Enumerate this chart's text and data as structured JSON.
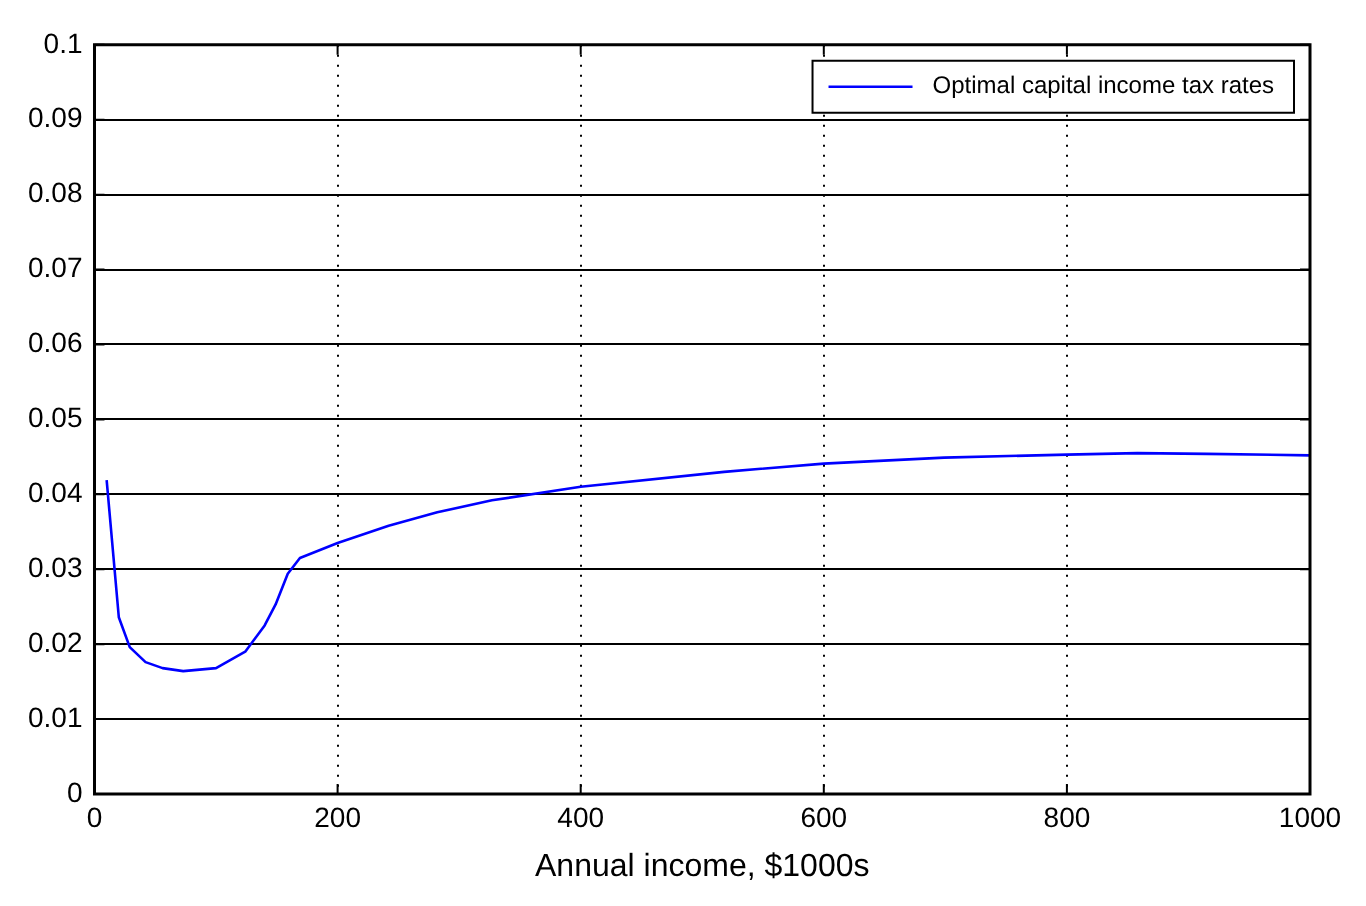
{
  "chart_data": {
    "type": "line",
    "xlabel": "Annual income, $1000s",
    "x": [
      10,
      20,
      29,
      42,
      56,
      73,
      100,
      124,
      140,
      149,
      159,
      169,
      200,
      242,
      282,
      327,
      400,
      518,
      600,
      699,
      800,
      858,
      915,
      1000
    ],
    "series": [
      {
        "name": "Optimal capital income tax rates",
        "color": "#0000ff",
        "values": [
          0.0419,
          0.0236,
          0.0196,
          0.0176,
          0.0168,
          0.0164,
          0.0168,
          0.019,
          0.0225,
          0.0253,
          0.0294,
          0.0315,
          0.0335,
          0.0358,
          0.0376,
          0.0392,
          0.041,
          0.043,
          0.0441,
          0.0449,
          0.0453,
          0.0455,
          0.0454,
          0.0452
        ]
      }
    ],
    "xlim": [
      0,
      1000
    ],
    "xticks": [
      0,
      200,
      400,
      600,
      800,
      1000
    ],
    "ylim": [
      0,
      0.1
    ],
    "yticks": [
      0,
      0.01,
      0.02,
      0.03,
      0.04,
      0.05,
      0.06,
      0.07,
      0.08,
      0.09,
      0.1
    ],
    "grid": true,
    "legend": "top right",
    "marker": "none",
    "line_style": "solid"
  }
}
